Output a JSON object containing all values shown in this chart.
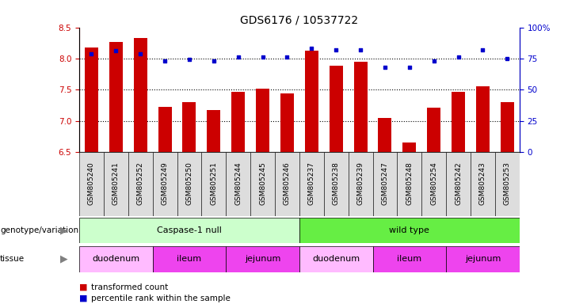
{
  "title": "GDS6176 / 10537722",
  "samples": [
    "GSM805240",
    "GSM805241",
    "GSM805252",
    "GSM805249",
    "GSM805250",
    "GSM805251",
    "GSM805244",
    "GSM805245",
    "GSM805246",
    "GSM805237",
    "GSM805238",
    "GSM805239",
    "GSM805247",
    "GSM805248",
    "GSM805254",
    "GSM805242",
    "GSM805243",
    "GSM805253"
  ],
  "transformed_count": [
    8.18,
    8.27,
    8.33,
    7.22,
    7.3,
    7.17,
    7.47,
    7.51,
    7.44,
    8.13,
    7.88,
    7.95,
    7.05,
    6.65,
    7.21,
    7.47,
    7.56,
    7.3
  ],
  "percentile_rank": [
    79,
    81,
    79,
    73,
    74,
    73,
    76,
    76,
    76,
    83,
    82,
    82,
    68,
    68,
    73,
    76,
    82,
    75
  ],
  "ylim_left": [
    6.5,
    8.5
  ],
  "ylim_right": [
    0,
    100
  ],
  "yticks_left": [
    6.5,
    7.0,
    7.5,
    8.0,
    8.5
  ],
  "yticks_right": [
    0,
    25,
    50,
    75,
    100
  ],
  "ytick_labels_right": [
    "0",
    "25",
    "50",
    "75",
    "100%"
  ],
  "bar_color": "#cc0000",
  "dot_color": "#0000cc",
  "background_color": "#ffffff",
  "plot_bg_color": "#ffffff",
  "genotype_groups": [
    {
      "label": "Caspase-1 null",
      "start": 0,
      "end": 9,
      "color": "#ccffcc"
    },
    {
      "label": "wild type",
      "start": 9,
      "end": 18,
      "color": "#66ee44"
    }
  ],
  "tissue_groups": [
    {
      "label": "duodenum",
      "start": 0,
      "end": 3,
      "color": "#ffbbff"
    },
    {
      "label": "ileum",
      "start": 3,
      "end": 6,
      "color": "#ee44ee"
    },
    {
      "label": "jejunum",
      "start": 6,
      "end": 9,
      "color": "#ee44ee"
    },
    {
      "label": "duodenum",
      "start": 9,
      "end": 12,
      "color": "#ffbbff"
    },
    {
      "label": "ileum",
      "start": 12,
      "end": 15,
      "color": "#ee44ee"
    },
    {
      "label": "jejunum",
      "start": 15,
      "end": 18,
      "color": "#ee44ee"
    }
  ],
  "legend_items": [
    {
      "label": "transformed count",
      "color": "#cc0000"
    },
    {
      "label": "percentile rank within the sample",
      "color": "#0000cc"
    }
  ],
  "tick_fontsize": 7.5,
  "title_fontsize": 10,
  "xtick_fontsize": 6.5
}
